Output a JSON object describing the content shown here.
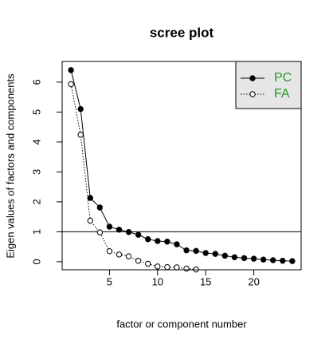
{
  "chart_data": {
    "type": "line",
    "title": "scree plot",
    "x_label": "factor or component number",
    "y_label": "Eigen values of factors and components",
    "x": [
      1,
      2,
      3,
      4,
      5,
      6,
      7,
      8,
      9,
      10,
      11,
      12,
      13,
      14,
      15,
      16,
      17,
      18,
      19,
      20,
      21,
      22,
      23,
      24
    ],
    "series": [
      {
        "name": "PC",
        "color": "#000000",
        "line_style": "solid",
        "marker": "filled",
        "values": [
          6.4,
          5.1,
          2.13,
          1.81,
          1.17,
          1.07,
          0.99,
          0.9,
          0.75,
          0.69,
          0.67,
          0.58,
          0.38,
          0.36,
          0.29,
          0.26,
          0.2,
          0.15,
          0.12,
          0.1,
          0.07,
          0.05,
          0.03,
          0.02
        ]
      },
      {
        "name": "FA",
        "color": "#000000",
        "line_style": "dotted",
        "marker": "open",
        "values": [
          5.93,
          4.24,
          1.37,
          0.98,
          0.35,
          0.24,
          0.18,
          0.03,
          -0.07,
          -0.16,
          -0.18,
          -0.19,
          -0.23,
          -0.26,
          null,
          null,
          null,
          null,
          null,
          null,
          null,
          null,
          null,
          null
        ]
      }
    ],
    "hline": 1,
    "xlim": [
      0.08,
      24.92
    ],
    "ylim": [
      -0.27,
      6.69
    ],
    "xticks": [
      5,
      10,
      15,
      20
    ],
    "yticks": [
      0,
      1,
      2,
      3,
      4,
      5,
      6
    ],
    "legend_position": "top-right",
    "legend_text_color": "#229922",
    "legend_background": "#e6e6e6"
  }
}
